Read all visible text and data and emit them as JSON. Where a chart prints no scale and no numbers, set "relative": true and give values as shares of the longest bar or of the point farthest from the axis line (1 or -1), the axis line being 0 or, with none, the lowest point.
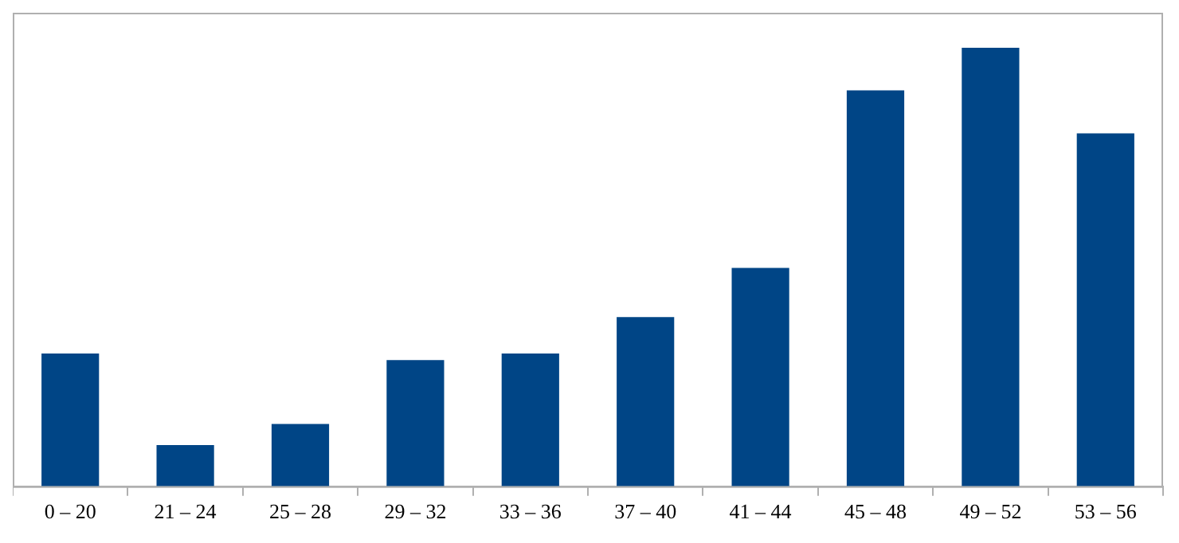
{
  "chart_data": {
    "type": "bar",
    "relative": true,
    "categories": [
      "0 – 20",
      "21 – 24",
      "25 – 28",
      "29 – 32",
      "33 – 36",
      "37 – 40",
      "41 – 44",
      "45 – 48",
      "49 – 52",
      "53 – 56"
    ],
    "values": [
      0.303,
      0.094,
      0.142,
      0.288,
      0.303,
      0.386,
      0.498,
      0.903,
      1,
      0.805
    ],
    "color": "#004586",
    "grid": false,
    "legend": false
  }
}
